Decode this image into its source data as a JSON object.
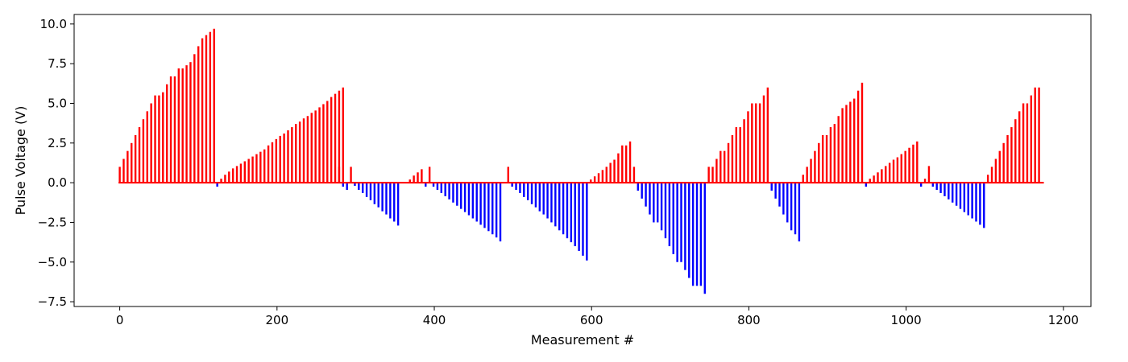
{
  "chart_data": {
    "type": "bar",
    "xlabel": "Measurement #",
    "ylabel": "Pulse Voltage (V)",
    "xlim": [
      -58,
      1235
    ],
    "ylim": [
      -7.8,
      10.6
    ],
    "xticks": [
      0,
      200,
      400,
      600,
      800,
      1000,
      1200
    ],
    "yticks": [
      -7.5,
      -5.0,
      -2.5,
      0.0,
      2.5,
      5.0,
      7.5,
      10.0
    ],
    "xtick_labels": [
      "0",
      "200",
      "400",
      "600",
      "800",
      "1000",
      "1200"
    ],
    "ytick_labels": [
      "−7.5",
      "−5.0",
      "−2.5",
      "0.0",
      "2.5",
      "5.0",
      "7.5",
      "10.0"
    ],
    "grid": false,
    "legend": "none",
    "colors": {
      "positive": "#ff0000",
      "negative": "#0000ff",
      "axes": "#000000"
    },
    "segments": [
      {
        "name": "ramp-1",
        "x_start": 0,
        "x_step": 5,
        "values": [
          1.0,
          1.5,
          2.0,
          2.5,
          3.0,
          3.5,
          4.0,
          4.5,
          5.0,
          5.5,
          5.5,
          5.7,
          6.2,
          6.7,
          6.7,
          7.2,
          7.2,
          7.4,
          7.6,
          8.1,
          8.6,
          9.1,
          9.3,
          9.5,
          9.7
        ]
      },
      {
        "name": "dip-1",
        "x_start": 124,
        "x_step": 5,
        "values": [
          -0.25
        ]
      },
      {
        "name": "ramp-2",
        "x_start": 129,
        "x_step": 5,
        "values": [
          0.25,
          0.5,
          0.7,
          0.9,
          1.05,
          1.2,
          1.35,
          1.5,
          1.65,
          1.8,
          1.95,
          2.1,
          2.35,
          2.55,
          2.75,
          2.95,
          3.1,
          3.3,
          3.5,
          3.7,
          3.85,
          4.05,
          4.2,
          4.4,
          4.55,
          4.75,
          4.95,
          5.15,
          5.4,
          5.6,
          5.8,
          6.0
        ]
      },
      {
        "name": "spike-1",
        "x_start": 279,
        "x_step": 5,
        "values": [
          1.0
        ]
      },
      {
        "name": "dip-2",
        "x_start": 284,
        "x_step": 5,
        "values": [
          -0.25,
          -0.45
        ]
      },
      {
        "name": "spike-2",
        "x_start": 294,
        "x_step": 5,
        "values": [
          1.0
        ]
      },
      {
        "name": "neg-ramp-1",
        "x_start": 299,
        "x_step": 5,
        "values": [
          -0.2,
          -0.45,
          -0.65,
          -0.9,
          -1.1,
          -1.35,
          -1.55,
          -1.8,
          -2.0,
          -2.25,
          -2.45,
          -2.7
        ]
      },
      {
        "name": "pos-small-1",
        "x_start": 369,
        "x_step": 5,
        "values": [
          0.2,
          0.45,
          0.65,
          0.85
        ]
      },
      {
        "name": "dip-3",
        "x_start": 389,
        "x_step": 5,
        "values": [
          -0.25
        ]
      },
      {
        "name": "spike-3",
        "x_start": 394,
        "x_step": 5,
        "values": [
          1.0
        ]
      },
      {
        "name": "neg-ramp-2",
        "x_start": 399,
        "x_step": 5,
        "values": [
          -0.25,
          -0.45,
          -0.65,
          -0.85,
          -1.05,
          -1.25,
          -1.45,
          -1.65,
          -1.85,
          -2.05,
          -2.25,
          -2.45,
          -2.65,
          -2.85,
          -3.05,
          -3.25,
          -3.45,
          -3.7
        ]
      },
      {
        "name": "spike-4",
        "x_start": 494,
        "x_step": 5,
        "values": [
          1.0
        ]
      },
      {
        "name": "neg-ramp-3",
        "x_start": 499,
        "x_step": 5,
        "values": [
          -0.25,
          -0.45,
          -0.65,
          -0.9,
          -1.1,
          -1.35,
          -1.55,
          -1.8,
          -2.0,
          -2.25,
          -2.5,
          -2.75,
          -3.0,
          -3.25,
          -3.5,
          -3.75,
          -4.0,
          -4.3,
          -4.6,
          -4.9
        ]
      },
      {
        "name": "ramp-3",
        "x_start": 599,
        "x_step": 5,
        "values": [
          0.2,
          0.4,
          0.6,
          0.8,
          1.0,
          1.25,
          1.45,
          1.85,
          2.35,
          2.35,
          2.6,
          1.0
        ]
      },
      {
        "name": "neg-ramp-4",
        "x_start": 659,
        "x_step": 5,
        "values": [
          -0.5,
          -1.0,
          -1.5,
          -2.0,
          -2.5,
          -2.5,
          -3.0,
          -3.5,
          -4.0,
          -4.5,
          -5.0,
          -5.0,
          -5.5,
          -6.0,
          -6.5,
          -6.5,
          -6.5,
          -7.0
        ]
      },
      {
        "name": "ramp-4",
        "x_start": 749,
        "x_step": 5,
        "values": [
          1.0,
          1.0,
          1.5,
          2.0,
          2.0,
          2.5,
          3.0,
          3.5,
          3.5,
          4.0,
          4.5,
          5.0,
          5.0,
          5.0,
          5.5,
          6.0
        ]
      },
      {
        "name": "neg-ramp-5",
        "x_start": 829,
        "x_step": 5,
        "values": [
          -0.5,
          -1.0,
          -1.5,
          -2.0,
          -2.5,
          -3.0,
          -3.25,
          -3.7
        ]
      },
      {
        "name": "ramp-5",
        "x_start": 869,
        "x_step": 5,
        "values": [
          0.5,
          1.0,
          1.5,
          2.0,
          2.5,
          3.0,
          3.0,
          3.5,
          3.7,
          4.2,
          4.7,
          4.9,
          5.1,
          5.3,
          5.8,
          6.3
        ]
      },
      {
        "name": "dip-4",
        "x_start": 949,
        "x_step": 5,
        "values": [
          -0.25
        ]
      },
      {
        "name": "ramp-6",
        "x_start": 954,
        "x_step": 5,
        "values": [
          0.25,
          0.45,
          0.65,
          0.85,
          1.05,
          1.25,
          1.45,
          1.6,
          1.8,
          2.0,
          2.2,
          2.4,
          2.6
        ]
      },
      {
        "name": "dip-5",
        "x_start": 1019,
        "x_step": 5,
        "values": [
          -0.25
        ]
      },
      {
        "name": "pos-small-2",
        "x_start": 1024,
        "x_step": 5,
        "values": [
          0.25,
          1.05
        ]
      },
      {
        "name": "neg-ramp-6",
        "x_start": 1034,
        "x_step": 5,
        "values": [
          -0.25,
          -0.45,
          -0.65,
          -0.85,
          -1.05,
          -1.25,
          -1.45,
          -1.65,
          -1.85,
          -2.05,
          -2.25,
          -2.45,
          -2.65,
          -2.85
        ]
      },
      {
        "name": "ramp-7",
        "x_start": 1104,
        "x_step": 5,
        "values": [
          0.5,
          1.0,
          1.5,
          2.0,
          2.5,
          3.0,
          3.5,
          4.0,
          4.5,
          5.0,
          5.0,
          5.5,
          6.0,
          6.0
        ]
      }
    ]
  }
}
